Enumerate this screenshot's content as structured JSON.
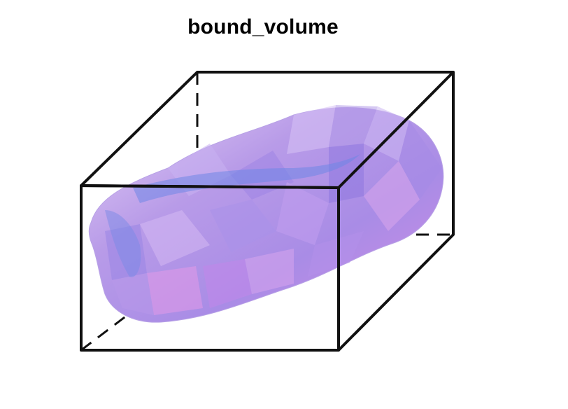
{
  "figure": {
    "title": "bound_volume"
  },
  "colors": {
    "background": "#ffffff",
    "edge": "#111111",
    "volume_light": "#e4cff5",
    "volume_mid": "#b89be8",
    "volume_dark": "#8c6ee0",
    "volume_blue": "#6f86e6",
    "volume_pink": "#df8ee6"
  }
}
